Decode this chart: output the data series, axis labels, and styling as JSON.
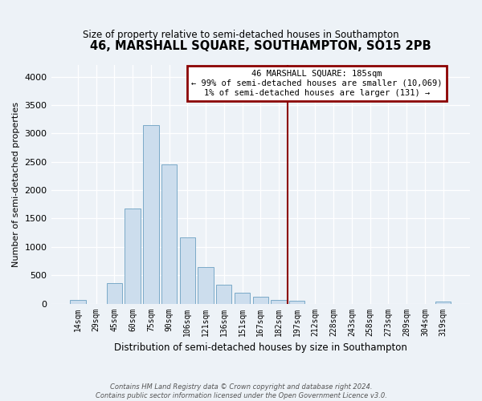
{
  "title": "46, MARSHALL SQUARE, SOUTHAMPTON, SO15 2PB",
  "subtitle": "Size of property relative to semi-detached houses in Southampton",
  "xlabel": "Distribution of semi-detached houses by size in Southampton",
  "ylabel": "Number of semi-detached properties",
  "footer_line1": "Contains HM Land Registry data © Crown copyright and database right 2024.",
  "footer_line2": "Contains public sector information licensed under the Open Government Licence v3.0.",
  "bar_labels": [
    "14sqm",
    "29sqm",
    "45sqm",
    "60sqm",
    "75sqm",
    "90sqm",
    "106sqm",
    "121sqm",
    "136sqm",
    "151sqm",
    "167sqm",
    "182sqm",
    "197sqm",
    "212sqm",
    "228sqm",
    "243sqm",
    "258sqm",
    "273sqm",
    "289sqm",
    "304sqm",
    "319sqm"
  ],
  "bar_values": [
    70,
    0,
    360,
    1680,
    3150,
    2450,
    1160,
    640,
    330,
    185,
    120,
    60,
    45,
    0,
    0,
    0,
    0,
    0,
    0,
    0,
    30
  ],
  "bar_color": "#ccdded",
  "bar_edge_color": "#7aaac8",
  "ylim": [
    0,
    4200
  ],
  "yticks": [
    0,
    500,
    1000,
    1500,
    2000,
    2500,
    3000,
    3500,
    4000
  ],
  "vline_x": 11.5,
  "vline_color": "#8b0000",
  "box_title": "46 MARSHALL SQUARE: 185sqm",
  "box_line1": "← 99% of semi-detached houses are smaller (10,069)",
  "box_line2": "1% of semi-detached houses are larger (131) →",
  "box_color": "#8b0000",
  "box_bg": "#ffffff",
  "background_color": "#edf2f7"
}
